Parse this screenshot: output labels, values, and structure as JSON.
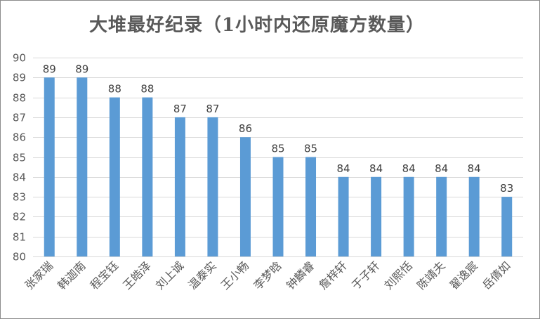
{
  "chart_data": {
    "type": "bar",
    "title": "大堆最好纪录（1小时内还原魔方数量）",
    "categories": [
      "张家瑞",
      "韩迦南",
      "程宝钰",
      "王皓泽",
      "刘上诚",
      "温泰实",
      "王小畅",
      "李梦晗",
      "钟麟睿",
      "詹梓轩",
      "于子轩",
      "刘熙恬",
      "陈靖夫",
      "翟逸宸",
      "岳倩如"
    ],
    "values": [
      89,
      89,
      88,
      88,
      87,
      87,
      86,
      85,
      85,
      84,
      84,
      84,
      84,
      84,
      83
    ],
    "ylim": [
      80,
      90
    ],
    "yticks": [
      80,
      81,
      82,
      83,
      84,
      85,
      86,
      87,
      88,
      89,
      90
    ],
    "xlabel": "",
    "ylabel": "",
    "grid": true,
    "legend": "none",
    "bar_color": "#5b9bd5",
    "grid_color": "#d9d9d9"
  }
}
